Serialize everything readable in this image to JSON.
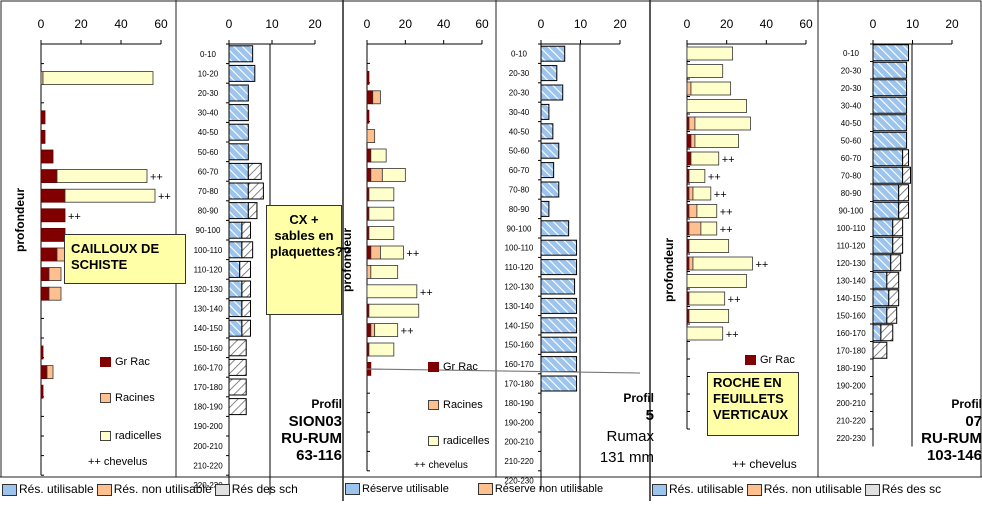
{
  "colors": {
    "gr_rac": "#800000",
    "racines": "#ffc090",
    "radicelles": "#ffffcc",
    "reserve_util": "#9dc4ec",
    "reserve_non_util": "#ffffff"
  },
  "depth_labels": [
    "0-10",
    "10-20",
    "20-30",
    "30-40",
    "40-50",
    "50-60",
    "60-70",
    "70-80",
    "80-90",
    "90-100",
    "100-110",
    "110-120",
    "120-130",
    "130-140",
    "140-150",
    "150-160",
    "160-170",
    "170-180",
    "180-190",
    "190-200",
    "200-210",
    "210-220",
    "220-230"
  ],
  "depth_labels_p2": [
    "0-10",
    "20-30",
    "20-30",
    "30-40",
    "40-50",
    "50-60",
    "60-70",
    "70-80",
    "80-90",
    "90-100",
    "100-110",
    "110-120",
    "120-130",
    "130-140",
    "140-150",
    "150-160",
    "160-170",
    "170-180",
    "180-190",
    "190-200",
    "200-210",
    "210-220",
    "220-230"
  ],
  "root_ticks": [
    "0",
    "20",
    "40",
    "60"
  ],
  "res_ticks": [
    "0",
    "10",
    "20"
  ],
  "ylabel": "profondeur",
  "legend": {
    "gr_rac": "Gr Rac",
    "racines": "Racines",
    "radicelles": "radicelles",
    "chevelus": "++ chevelus"
  },
  "bottom_legend": {
    "p1": {
      "util": "Rés. utilisable",
      "non_util": "Rés. non utilisable",
      "sch": "Rés des sch"
    },
    "p2": {
      "util": "Réserve utilisable",
      "non_util": "Réserve non utilisable"
    },
    "p3": {
      "util": "Rés. utilisable",
      "non_util": "Rés. non utilisable",
      "sch": "Rés des sc"
    }
  },
  "panels": [
    {
      "title_lines": [
        "Profil",
        "SION03",
        "RU-RUM",
        "63-116"
      ],
      "notes": [
        "CAILLOUX DE SCHISTE",
        "CX + sables en plaquettes??"
      ]
    },
    {
      "title_lines": [
        "Profil",
        "5",
        "Rumax",
        "131 mm"
      ],
      "notes": []
    },
    {
      "title_lines": [
        "Profil",
        "07",
        "RU-RUM",
        "103-146"
      ],
      "notes": [
        "ROCHE EN FEUILLETS VERTICAUX"
      ]
    }
  ],
  "chart_data": [
    {
      "type": "bar",
      "title": "Profil SION03 roots",
      "ylabel": "profondeur",
      "xlim": [
        0,
        60
      ],
      "categories": [
        "0-10",
        "10-20",
        "20-30",
        "30-40",
        "40-50",
        "50-60",
        "60-70",
        "70-80",
        "80-90",
        "90-100",
        "100-110",
        "110-120",
        "120-130",
        "130-140",
        "140-150",
        "150-160",
        "160-170",
        "170-180"
      ],
      "series": [
        {
          "name": "Gr Rac",
          "values": [
            0,
            0,
            0,
            2,
            2,
            6,
            8,
            12,
            12,
            12,
            8,
            4,
            4,
            0,
            0,
            1,
            3,
            1
          ]
        },
        {
          "name": "Racines",
          "values": [
            0,
            1,
            0,
            0,
            0,
            0,
            0,
            0,
            0,
            0,
            6,
            6,
            6,
            0,
            0,
            0,
            3,
            0
          ]
        },
        {
          "name": "radicelles",
          "values": [
            0,
            55,
            0,
            0,
            0,
            0,
            45,
            45,
            0,
            0,
            0,
            0,
            0,
            0,
            0,
            0,
            0,
            0
          ]
        }
      ],
      "annotations": {
        "chevelus_rows": [
          6,
          7,
          8
        ]
      }
    },
    {
      "type": "bar",
      "title": "Profil SION03 reserve",
      "xlim": [
        0,
        20
      ],
      "categories": [
        "0-10",
        "10-20",
        "20-30",
        "30-40",
        "40-50",
        "50-60",
        "60-70",
        "70-80",
        "80-90",
        "90-100",
        "100-110",
        "110-120",
        "120-130",
        "130-140",
        "140-150",
        "150-160",
        "160-170",
        "170-180",
        "180-190"
      ],
      "series": [
        {
          "name": "Rés. utilisable",
          "values": [
            5.5,
            6,
            4.5,
            4.5,
            4.5,
            4.5,
            4.5,
            4.5,
            4.5,
            3,
            3,
            2.5,
            3,
            3,
            3,
            0,
            0,
            0,
            0
          ]
        },
        {
          "name": "Rés. non utilisable",
          "values": [
            0,
            0,
            0,
            0,
            0,
            0,
            0,
            0,
            0,
            0,
            0,
            0,
            0,
            0,
            0,
            0,
            0,
            0,
            0
          ]
        },
        {
          "name": "Rés des sch",
          "values": [
            0,
            0,
            0,
            0,
            0,
            0,
            3,
            3.5,
            2,
            2,
            2.5,
            2.5,
            2,
            2,
            2,
            4,
            4,
            4,
            4
          ]
        }
      ]
    },
    {
      "type": "bar",
      "title": "Profil 5 roots",
      "xlim": [
        0,
        60
      ],
      "categories": [
        "0-10",
        "20-30",
        "20-30",
        "30-40",
        "40-50",
        "50-60",
        "60-70",
        "70-80",
        "80-90",
        "90-100",
        "100-110",
        "110-120",
        "120-130",
        "130-140",
        "140-150",
        "150-160",
        "160-170"
      ],
      "series": [
        {
          "name": "Gr Rac",
          "values": [
            0,
            1,
            3,
            1,
            0,
            2,
            2,
            1,
            1,
            1,
            2,
            0,
            0,
            1,
            2,
            1,
            2
          ]
        },
        {
          "name": "Racines",
          "values": [
            0,
            0,
            4,
            0,
            4,
            0,
            6,
            0,
            0,
            0,
            5,
            2,
            0,
            0,
            2,
            0,
            0
          ]
        },
        {
          "name": "radicelles",
          "values": [
            0,
            0,
            0,
            0,
            0,
            8,
            12,
            13,
            13,
            13,
            12,
            14,
            26,
            26,
            12,
            13,
            0
          ]
        }
      ],
      "annotations": {
        "chevelus_rows": [
          10,
          12,
          14
        ]
      }
    },
    {
      "type": "bar",
      "title": "Profil 5 reserve",
      "xlim": [
        0,
        20
      ],
      "categories": [
        "0-10",
        "20-30",
        "20-30",
        "30-40",
        "40-50",
        "50-60",
        "60-70",
        "70-80",
        "80-90",
        "90-100",
        "100-110",
        "110-120",
        "120-130",
        "130-140",
        "140-150",
        "150-160",
        "160-170",
        "170-180"
      ],
      "series": [
        {
          "name": "Réserve utilisable",
          "values": [
            6,
            4,
            5.5,
            2,
            3,
            4.5,
            3.2,
            4.5,
            2,
            7,
            9,
            9,
            8.5,
            9,
            9,
            9,
            9,
            9
          ]
        },
        {
          "name": "Réserve non utilisable",
          "values": [
            0,
            0,
            0,
            0,
            0,
            0,
            0,
            0,
            0,
            0,
            0,
            0,
            0,
            0,
            0,
            0,
            0,
            0
          ]
        }
      ]
    },
    {
      "type": "bar",
      "title": "Profil 07 roots",
      "xlim": [
        0,
        60
      ],
      "categories": [
        "0-10",
        "10-20",
        "20-30",
        "30-40",
        "40-50",
        "50-60",
        "60-70",
        "70-80",
        "80-90",
        "90-100",
        "100-110",
        "110-120",
        "120-130",
        "130-140",
        "140-150",
        "150-160",
        "160-170"
      ],
      "series": [
        {
          "name": "Gr Rac",
          "values": [
            0,
            0,
            0,
            0,
            1,
            2,
            2,
            1,
            1,
            1,
            1,
            1,
            1,
            0,
            1,
            1,
            0
          ]
        },
        {
          "name": "Racines",
          "values": [
            0,
            0,
            2,
            0,
            3,
            2,
            0,
            0,
            2,
            4,
            6,
            0,
            2,
            0,
            0,
            0,
            0
          ]
        },
        {
          "name": "radicelles",
          "values": [
            23,
            18,
            20,
            30,
            28,
            22,
            14,
            8,
            9,
            10,
            8,
            20,
            30,
            30,
            18,
            20,
            18
          ]
        }
      ],
      "annotations": {
        "chevelus_rows": [
          6,
          7,
          8,
          9,
          10,
          12,
          14,
          16
        ]
      }
    },
    {
      "type": "bar",
      "title": "Profil 07 reserve",
      "xlim": [
        0,
        20
      ],
      "categories": [
        "0-10",
        "20-30",
        "20-30",
        "30-40",
        "40-50",
        "50-60",
        "60-70",
        "70-80",
        "80-90",
        "90-100",
        "100-110",
        "110-120",
        "120-130",
        "130-140",
        "140-150",
        "150-160",
        "160-170",
        "170-180"
      ],
      "series": [
        {
          "name": "Rés. utilisable",
          "values": [
            9,
            8.5,
            8.5,
            8.5,
            8.5,
            8.5,
            7.5,
            7.5,
            6.5,
            6.5,
            5,
            5,
            4.5,
            3.5,
            4,
            3.5,
            2,
            0
          ]
        },
        {
          "name": "Rés. non utilisable",
          "values": [
            0,
            0,
            0,
            0,
            0,
            0,
            0,
            0,
            0,
            0,
            0,
            0,
            0,
            0,
            0,
            0,
            0,
            0
          ]
        },
        {
          "name": "Rés des sch",
          "values": [
            0,
            0,
            0,
            0,
            0,
            0,
            1.5,
            2,
            2.5,
            2.5,
            2.5,
            2.5,
            2.5,
            3,
            2.5,
            2.5,
            3,
            3.5
          ]
        }
      ]
    }
  ]
}
